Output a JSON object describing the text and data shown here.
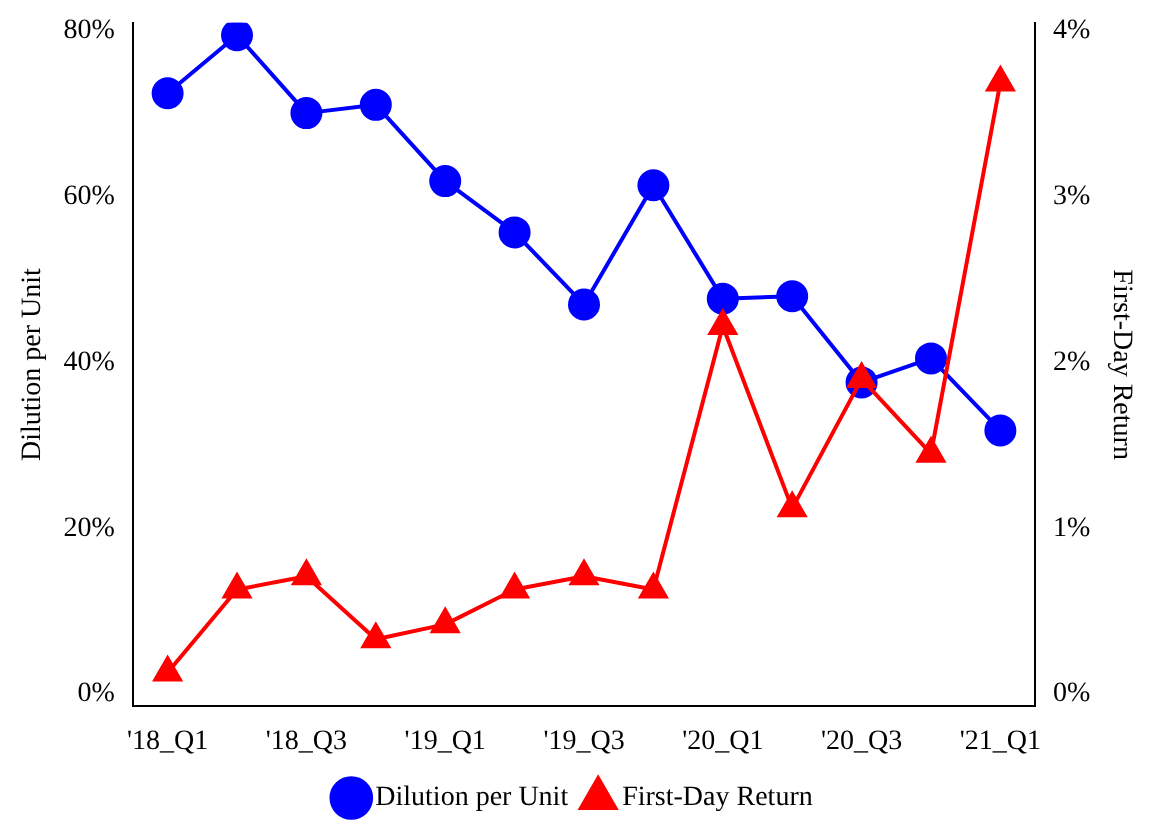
{
  "chart_data": {
    "type": "line",
    "categories": [
      "'18_Q1",
      null,
      "'18_Q3",
      null,
      "'19_Q1",
      null,
      "'19_Q3",
      null,
      "'20_Q1",
      null,
      "'20_Q3",
      null,
      "'21_Q1"
    ],
    "series": [
      {
        "name": "Dilution per Unit",
        "color": "#0000ff",
        "marker": "circle",
        "values": [
          72.5,
          79.5,
          70.1,
          71.1,
          61.9,
          55.7,
          47,
          61.4,
          47.7,
          48,
          37.6,
          40.5,
          31.8
        ]
      },
      {
        "name": "First-Day Return",
        "color": "#ff0000",
        "marker": "triangle",
        "axis": "y2",
        "values": [
          0.13,
          0.63,
          0.71,
          0.33,
          0.42,
          0.63,
          0.71,
          0.63,
          2.22,
          1.12,
          1.9,
          1.45,
          3.69
        ]
      }
    ],
    "ylabel": "Dilution per Unit",
    "y2label": "First-Day Return",
    "ylim": [
      -1.5,
      81
    ],
    "yticks": [
      {
        "value": 0,
        "label": "0%"
      },
      {
        "value": 20,
        "label": "20%"
      },
      {
        "value": 40,
        "label": "40%"
      },
      {
        "value": 60,
        "label": "60%"
      },
      {
        "value": 80,
        "label": "80%"
      }
    ],
    "y2lim": [
      -0.075,
      4.05
    ],
    "y2ticks": [
      {
        "value": 0,
        "label": "0%"
      },
      {
        "value": 1,
        "label": "1%"
      },
      {
        "value": 2,
        "label": "2%"
      },
      {
        "value": 3,
        "label": "3%"
      },
      {
        "value": 4,
        "label": "4%"
      }
    ],
    "grid": false,
    "legend": "bottom"
  }
}
